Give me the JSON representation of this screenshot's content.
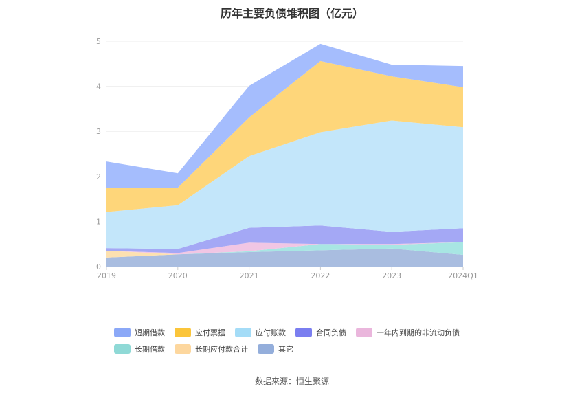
{
  "chart_data": {
    "type": "area",
    "title": "历年主要负债堆积图（亿元）",
    "categories": [
      "2019",
      "2020",
      "2021",
      "2022",
      "2023",
      "2024Q1"
    ],
    "ylim": [
      0,
      5
    ],
    "yticks": [
      "0",
      "1",
      "2",
      "3",
      "4",
      "5"
    ],
    "stacked": true,
    "grid": true,
    "legend_position": "bottom",
    "series": [
      {
        "name": "其它",
        "color": "#a9bde0",
        "values": [
          0.2,
          0.27,
          0.32,
          0.36,
          0.4,
          0.26
        ]
      },
      {
        "name": "长期应付款合计",
        "color": "#fde1b0",
        "values": [
          0.15,
          0.0,
          0.0,
          0.0,
          0.0,
          0.0
        ]
      },
      {
        "name": "长期借款",
        "color": "#a8e6e3",
        "values": [
          0.0,
          0.0,
          0.02,
          0.14,
          0.08,
          0.28
        ]
      },
      {
        "name": "一年内到期的非流动负债",
        "color": "#f1c6e4",
        "values": [
          0.0,
          0.03,
          0.19,
          0.0,
          0.02,
          0.0
        ]
      },
      {
        "name": "合同负债",
        "color": "#a4a8f5",
        "values": [
          0.06,
          0.09,
          0.33,
          0.41,
          0.27,
          0.31
        ]
      },
      {
        "name": "应付账款",
        "color": "#c3e6fa",
        "values": [
          0.8,
          0.97,
          1.59,
          2.07,
          2.47,
          2.24
        ]
      },
      {
        "name": "应付票据",
        "color": "#fed67a",
        "values": [
          0.53,
          0.39,
          0.86,
          1.58,
          0.98,
          0.89
        ]
      },
      {
        "name": "短期借款",
        "color": "#a5bdfd",
        "values": [
          0.59,
          0.32,
          0.7,
          0.38,
          0.26,
          0.47
        ]
      }
    ],
    "legend": [
      {
        "name": "短期借款",
        "color": "#8ba8f7"
      },
      {
        "name": "应付票据",
        "color": "#fbc53a"
      },
      {
        "name": "应付账款",
        "color": "#a4dcf7"
      },
      {
        "name": "合同负债",
        "color": "#7a7ef0"
      },
      {
        "name": "一年内到期的非流动负债",
        "color": "#eab6dc"
      },
      {
        "name": "长期借款",
        "color": "#8fd9d6"
      },
      {
        "name": "长期应付款合计",
        "color": "#fdd79e"
      },
      {
        "name": "其它",
        "color": "#94aedb"
      }
    ]
  },
  "source": "数据来源：恒生聚源"
}
